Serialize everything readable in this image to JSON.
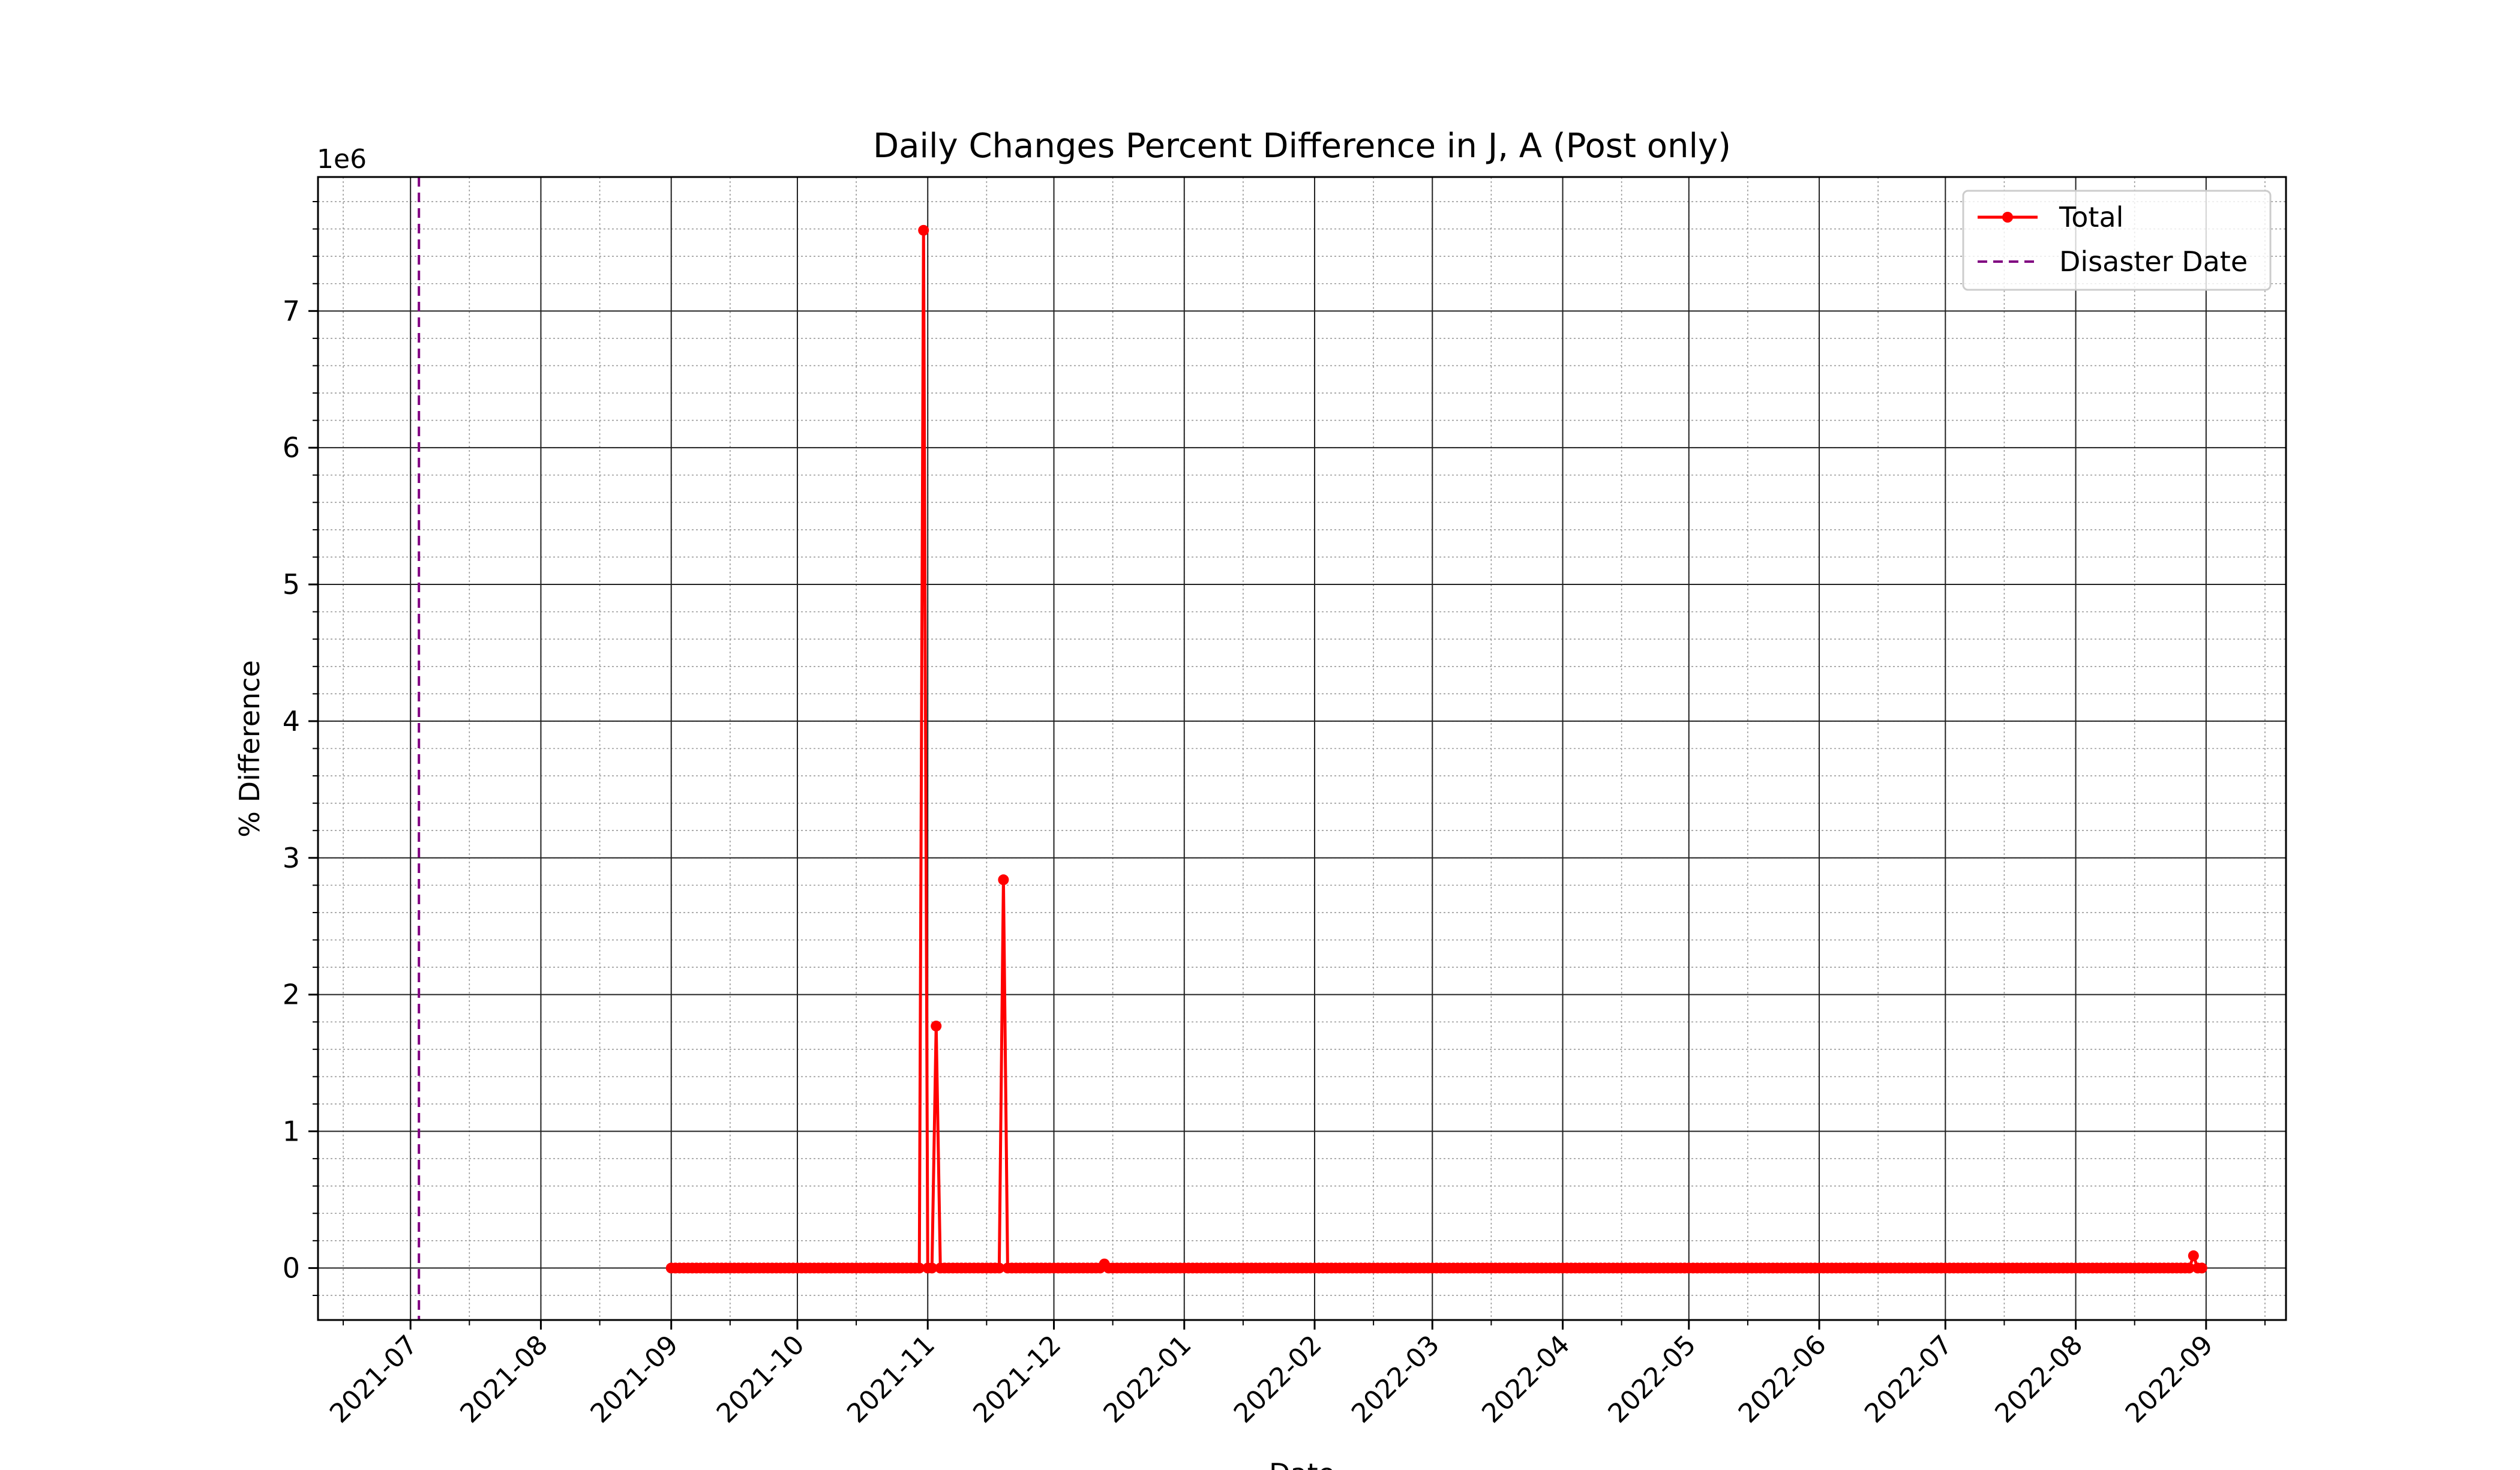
{
  "chart_data": {
    "type": "line",
    "title": "Daily Changes Percent Difference in J, A (Post only)",
    "xlabel": "Date",
    "ylabel": "% Difference",
    "y_offset_label": "1e6",
    "y_scale_factor": 1000000,
    "xlim": [
      "2021-06-09",
      "2022-09-20"
    ],
    "ylim": [
      -380000,
      7980000
    ],
    "x_ticks": [
      "2021-07",
      "2021-08",
      "2021-09",
      "2021-10",
      "2021-11",
      "2021-12",
      "2022-01",
      "2022-02",
      "2022-03",
      "2022-04",
      "2022-05",
      "2022-06",
      "2022-07",
      "2022-08",
      "2022-09"
    ],
    "y_ticks": [
      0,
      1000000,
      2000000,
      3000000,
      4000000,
      5000000,
      6000000,
      7000000
    ],
    "y_tick_labels": [
      "0",
      "1",
      "2",
      "3",
      "4",
      "5",
      "6",
      "7"
    ],
    "grid": {
      "major": true,
      "minor": true
    },
    "legend_position": "top-right",
    "series": [
      {
        "name": "Total",
        "color": "#ff0000",
        "marker": "circle",
        "baseline_range": [
          "2021-09-01",
          "2022-08-31"
        ],
        "baseline_value": 0,
        "points": [
          {
            "x": "2021-10-30",
            "y": 0
          },
          {
            "x": "2021-10-31",
            "y": 7590000
          },
          {
            "x": "2021-11-01",
            "y": 0
          },
          {
            "x": "2021-11-02",
            "y": 0
          },
          {
            "x": "2021-11-03",
            "y": 1770000
          },
          {
            "x": "2021-11-04",
            "y": 0
          },
          {
            "x": "2021-11-18",
            "y": 0
          },
          {
            "x": "2021-11-19",
            "y": 2840000
          },
          {
            "x": "2021-11-20",
            "y": 0
          },
          {
            "x": "2021-12-12",
            "y": 0
          },
          {
            "x": "2021-12-13",
            "y": 30000
          },
          {
            "x": "2021-12-14",
            "y": 0
          },
          {
            "x": "2022-08-28",
            "y": 0
          },
          {
            "x": "2022-08-29",
            "y": 90000
          },
          {
            "x": "2022-08-30",
            "y": 0
          }
        ]
      },
      {
        "name": "Disaster Date",
        "color": "#800080",
        "style": "dashed",
        "x": "2021-07-03"
      }
    ]
  }
}
